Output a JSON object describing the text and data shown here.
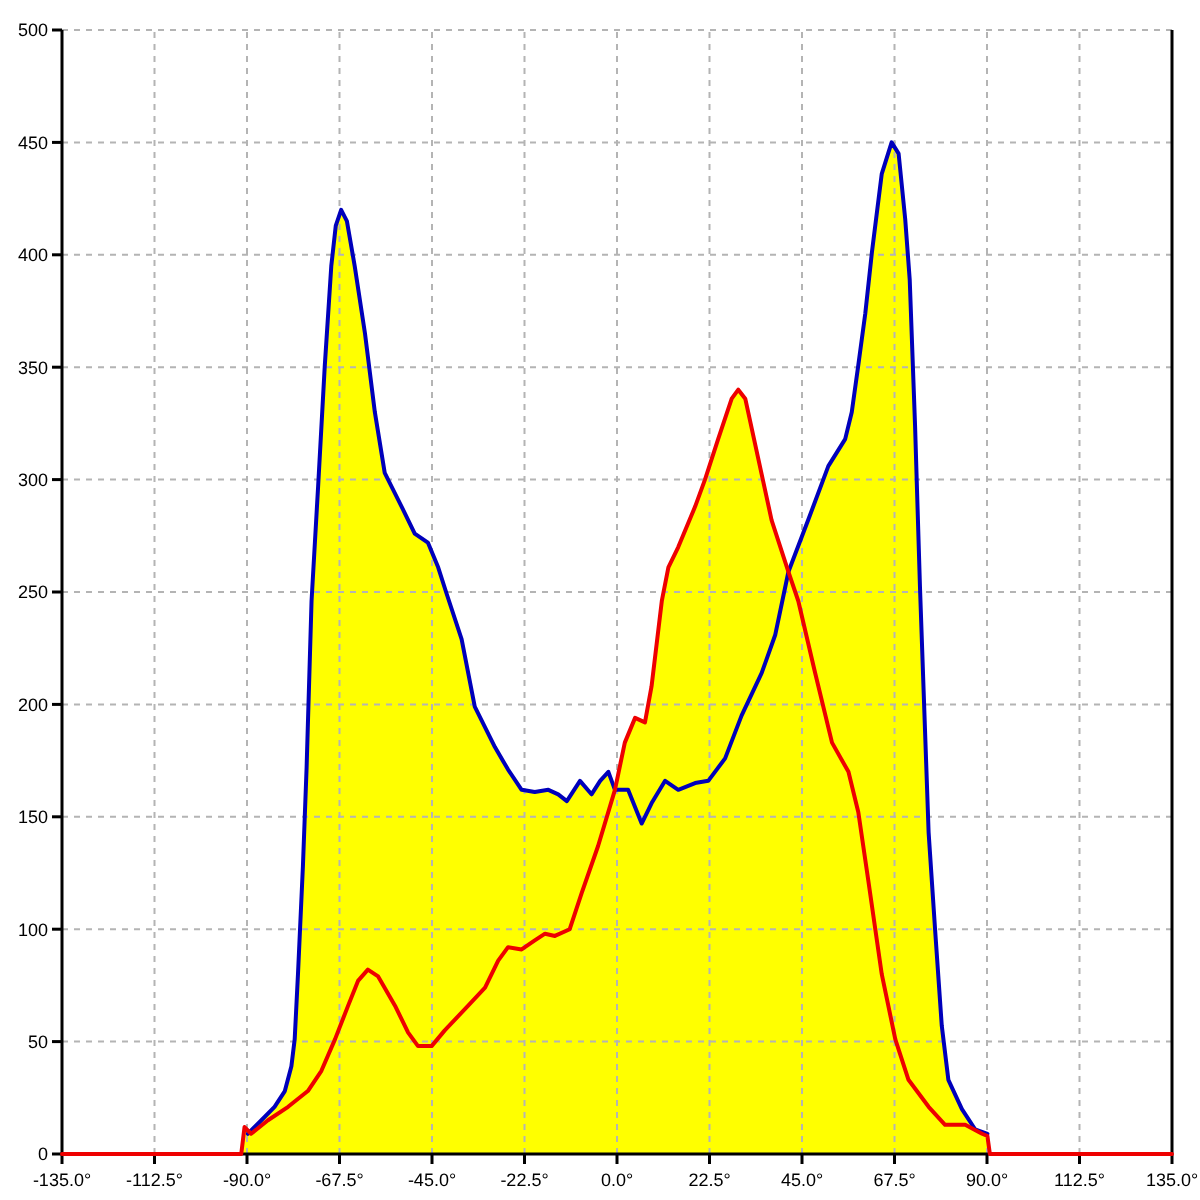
{
  "chart_data": {
    "type": "line",
    "grid": true,
    "xlim": [
      -135,
      135
    ],
    "xticks": [
      {
        "value": -135,
        "label": "-135.0°"
      },
      {
        "value": -112.5,
        "label": "-112.5°"
      },
      {
        "value": -90,
        "label": "-90.0°"
      },
      {
        "value": -67.5,
        "label": "-67.5°"
      },
      {
        "value": -45,
        "label": "-45.0°"
      },
      {
        "value": -22.5,
        "label": "-22.5°"
      },
      {
        "value": 0,
        "label": "0.0°"
      },
      {
        "value": 22.5,
        "label": "22.5°"
      },
      {
        "value": 45,
        "label": "45.0°"
      },
      {
        "value": 67.5,
        "label": "67.5°"
      },
      {
        "value": 90,
        "label": "90.0°"
      },
      {
        "value": 112.5,
        "label": "112.5°"
      },
      {
        "value": 135,
        "label": "135.0°"
      }
    ],
    "ylim": [
      0,
      500
    ],
    "yticks": [
      0,
      50,
      100,
      150,
      200,
      250,
      300,
      350,
      400,
      450,
      500
    ],
    "series": [
      {
        "type": "area",
        "color": "#ffff00",
        "x": [
          -91.4,
          -90.6,
          -89.8,
          -86.5,
          -83.3,
          -80.8,
          -79.2,
          -78.4,
          -77.6,
          -76.4,
          -75.5,
          -74.3,
          -72.7,
          -71.1,
          -69.5,
          -68.4,
          -67.1,
          -65.7,
          -63.8,
          -61.3,
          -58.9,
          -56.5,
          -52.4,
          -49.2,
          -46,
          -43.5,
          -41.4,
          -37.8,
          -34.6,
          -29.7,
          -26.5,
          -23.2,
          -20,
          -16.7,
          -14.3,
          -12.2,
          -9,
          -6.2,
          -4.1,
          -2.1,
          -0.5,
          1.9,
          4.4,
          6.8,
          8.4,
          10.9,
          12.5,
          14.9,
          19,
          21.4,
          24.6,
          27.9,
          29.5,
          31.2,
          34.4,
          37.6,
          41.7,
          46.5,
          51.4,
          55.5,
          57.1,
          58.7,
          60.4,
          62,
          64.4,
          66.8,
          68.5,
          70.1,
          71.2,
          72.5,
          73.7,
          75.8,
          77.4,
          79,
          80.6,
          83.9,
          87.1,
          90.1,
          90.7
        ],
        "values": [
          0,
          12,
          9,
          15,
          21,
          28,
          39,
          51,
          80,
          128,
          172,
          246,
          297,
          350,
          395,
          413,
          420,
          415,
          395,
          365,
          330,
          303,
          288,
          276,
          272,
          261,
          249,
          229,
          199,
          181,
          171,
          162,
          161,
          162,
          160,
          157,
          166,
          160,
          166,
          170,
          162,
          183,
          194,
          192,
          208,
          246,
          261,
          270,
          288,
          300,
          318,
          336,
          340,
          336,
          309,
          282,
          259,
          282,
          306,
          318,
          330,
          351,
          374,
          401,
          436,
          450,
          445,
          416,
          389,
          324,
          252,
          143,
          99,
          57,
          33,
          20,
          11,
          9,
          0
        ]
      },
      {
        "color": "#0000bb",
        "x": [
          -89.8,
          -86.5,
          -83.3,
          -80.8,
          -79.2,
          -78.4,
          -77.6,
          -76.4,
          -75.5,
          -74.3,
          -72.7,
          -71.1,
          -69.5,
          -68.4,
          -67.1,
          -65.7,
          -63.8,
          -61.3,
          -58.9,
          -56.5,
          -52.4,
          -49.2,
          -46,
          -43.5,
          -41.4,
          -37.8,
          -34.6,
          -29.7,
          -26.5,
          -23.2,
          -20,
          -16.7,
          -14.3,
          -12.2,
          -9,
          -6.2,
          -4.1,
          -2.1,
          -0.5,
          2.7,
          6,
          8.4,
          11.7,
          14.9,
          19,
          22.2,
          26.3,
          30.3,
          35.2,
          38.5,
          41.7,
          46.5,
          51.4,
          55.5,
          57.1,
          58.7,
          60.4,
          62,
          64.4,
          66.8,
          68.5,
          70.1,
          71.2,
          72.5,
          73.7,
          75.8,
          77.4,
          79,
          80.6,
          83.9,
          87.1,
          90.1
        ],
        "values": [
          9,
          15,
          21,
          28,
          39,
          51,
          80,
          128,
          172,
          246,
          297,
          350,
          395,
          413,
          420,
          415,
          395,
          365,
          330,
          303,
          288,
          276,
          272,
          261,
          249,
          229,
          199,
          181,
          171,
          162,
          161,
          162,
          160,
          157,
          166,
          160,
          166,
          170,
          162,
          162,
          147,
          156,
          166,
          162,
          165,
          166,
          176,
          195,
          214,
          231,
          259,
          282,
          306,
          318,
          330,
          351,
          374,
          401,
          436,
          450,
          445,
          416,
          389,
          324,
          252,
          143,
          99,
          57,
          33,
          20,
          11,
          9
        ]
      },
      {
        "color": "#ee0000",
        "x": [
          -135,
          -91.4,
          -90.6,
          -89,
          -84.9,
          -80,
          -75.2,
          -71.9,
          -68.6,
          -65.4,
          -63,
          -60.6,
          -58.1,
          -54,
          -50.8,
          -48.4,
          -45.1,
          -41.9,
          -36.2,
          -32.1,
          -28.9,
          -26.5,
          -23.2,
          -20,
          -17.5,
          -15.1,
          -11.5,
          -8.6,
          -4.6,
          -0.5,
          1.9,
          4.4,
          6.8,
          8.4,
          10.9,
          12.5,
          14.9,
          19,
          21.4,
          24.6,
          27.9,
          29.5,
          31.2,
          34.4,
          37.6,
          41.7,
          44.1,
          48.2,
          52.3,
          56.3,
          58.7,
          61.1,
          64.4,
          67.7,
          70.9,
          75.8,
          79.8,
          84.7,
          88.8,
          90.1,
          90.7,
          135
        ],
        "values": [
          0,
          0,
          12,
          9,
          15,
          21,
          28,
          37,
          51,
          66,
          77,
          82,
          79,
          66,
          54,
          48,
          48,
          55,
          66,
          74,
          86,
          92,
          91,
          95,
          98,
          97,
          100,
          116,
          137,
          162,
          183,
          194,
          192,
          208,
          246,
          261,
          270,
          288,
          300,
          318,
          336,
          340,
          336,
          309,
          282,
          259,
          246,
          214,
          183,
          170,
          152,
          122,
          80,
          51,
          33,
          21,
          13,
          13,
          9,
          8,
          0,
          0
        ]
      }
    ]
  }
}
